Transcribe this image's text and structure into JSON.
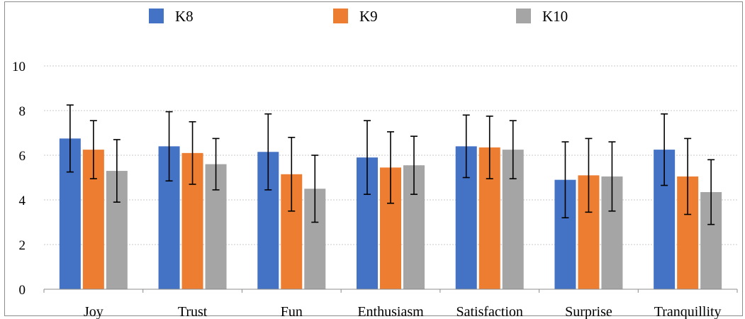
{
  "chart_data": {
    "type": "bar",
    "title": "",
    "xlabel": "",
    "ylabel": "",
    "ylim": [
      0,
      10
    ],
    "yticks": [
      0,
      2,
      4,
      6,
      8,
      10
    ],
    "ytick_labels": [
      "0",
      "2",
      "4",
      "6",
      "8",
      "10"
    ],
    "grid": "horizontal dotted",
    "legend_position": "top",
    "error_bars": true,
    "categories": [
      "Joy",
      "Trust",
      "Fun",
      "Enthusiasm",
      "Satisfaction",
      "Surprise",
      "Tranquillity"
    ],
    "series": [
      {
        "name": "K8",
        "color": "#4472c4",
        "values": [
          6.75,
          6.4,
          6.15,
          5.9,
          6.4,
          4.9,
          6.25
        ],
        "errors": [
          1.5,
          1.55,
          1.7,
          1.65,
          1.4,
          1.7,
          1.6
        ]
      },
      {
        "name": "K9",
        "color": "#ed7d31",
        "values": [
          6.25,
          6.1,
          5.15,
          5.45,
          6.35,
          5.1,
          5.05
        ],
        "errors": [
          1.3,
          1.4,
          1.65,
          1.6,
          1.4,
          1.65,
          1.7
        ]
      },
      {
        "name": "K10",
        "color": "#a5a5a5",
        "values": [
          5.3,
          5.6,
          4.5,
          5.55,
          6.25,
          5.05,
          4.35
        ],
        "errors": [
          1.4,
          1.15,
          1.5,
          1.3,
          1.3,
          1.55,
          1.45
        ]
      }
    ]
  }
}
